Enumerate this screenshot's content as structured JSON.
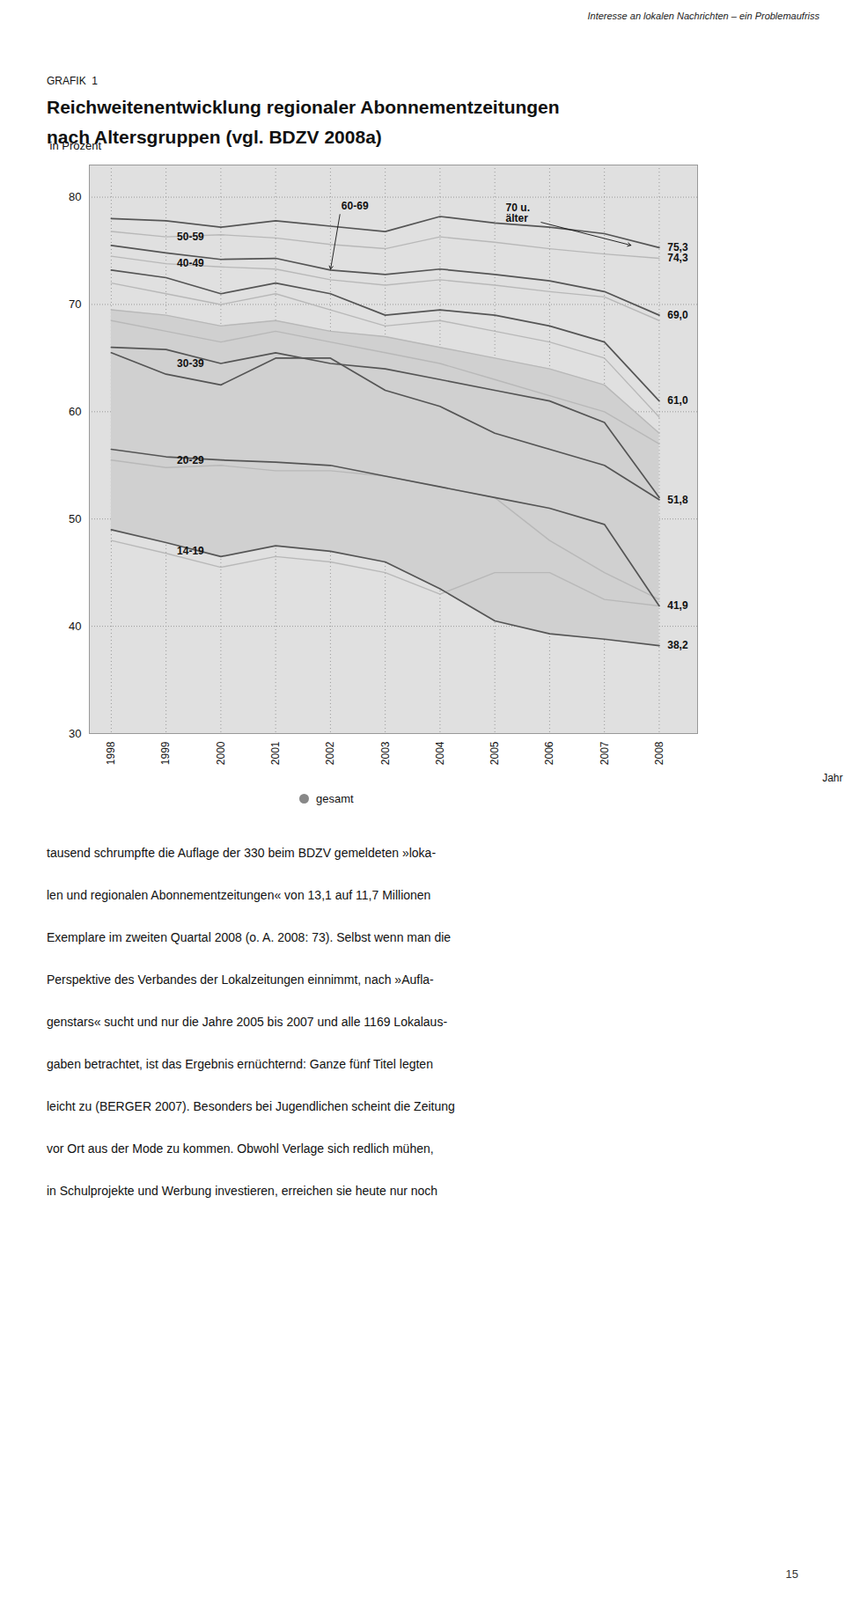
{
  "header_text": "Interesse an lokalen Nachrichten – ein Problemaufriss",
  "figure_label": "GRAFIK  1",
  "body_text": [
    "tausend schrumpfte die Auflage der 330 beim BDZV gemeldeten »loka-",
    "len und regionalen Abonnementzeitungen« von 13,1 auf 11,7 Millionen",
    "Exemplare im zweiten Quartal 2008 (o. A. 2008: 73). Selbst wenn man die",
    "Perspektive des Verbandes der Lokalzeitungen einnimmt, nach »Aufla-",
    "genstars« sucht und nur die Jahre 2005 bis 2007 und alle 1169 Lokalaus-",
    "gaben betrachtet, ist das Ergebnis ernüchternd: Ganze fünf Titel legten",
    "leicht zu (BERGER 2007). Besonders bei Jugendlichen scheint die Zeitung",
    "vor Ort aus der Mode zu kommen. Obwohl Verlage sich redlich mühen,",
    "in Schulprojekte und Werbung investieren, erreichen sie heute nur noch"
  ],
  "page_number": "15",
  "chart_data": {
    "type": "line",
    "title": "Reichweitenentwicklung regionaler Abonnementzeitungen\nnach Altersgruppen (vgl. BDZV 2008a)",
    "xlabel": "Jahr",
    "ylabel": "in Prozent",
    "x": [
      1998,
      1999,
      2000,
      2001,
      2002,
      2003,
      2004,
      2005,
      2006,
      2007,
      2008
    ],
    "xlim": [
      1997.6,
      2008.7
    ],
    "xticks": [
      1998,
      1999,
      2000,
      2001,
      2002,
      2003,
      2004,
      2005,
      2006,
      2007,
      2008
    ],
    "ylim": [
      30,
      83
    ],
    "yticks": [
      30,
      40,
      50,
      60,
      70,
      80
    ],
    "grid": true,
    "background_color": "#e0e0e0",
    "series": [
      {
        "type": "area",
        "color": "#d0d0d0",
        "values": [
          69.5,
          69.0,
          68.0,
          68.5,
          67.5,
          67.0,
          66.0,
          65.0,
          64.0,
          62.5,
          58.0
        ],
        "base": [
          49.0,
          47.8,
          46.5,
          47.5,
          47.0,
          46.0,
          43.5,
          40.5,
          39.3,
          38.8,
          38.2
        ]
      },
      {
        "color": "#555555",
        "values": [
          78.0,
          77.8,
          77.2,
          77.8,
          77.3,
          76.8,
          78.2,
          77.6,
          77.2,
          76.6,
          75.3
        ]
      },
      {
        "color": "#b8b8b8",
        "values": [
          76.8,
          76.3,
          76.5,
          76.2,
          75.6,
          75.2,
          76.3,
          75.8,
          75.2,
          74.7,
          74.3
        ]
      },
      {
        "color": "#555555",
        "values": [
          75.5,
          74.8,
          74.2,
          74.3,
          73.2,
          72.8,
          73.3,
          72.8,
          72.2,
          71.2,
          69.0
        ]
      },
      {
        "color": "#b8b8b8",
        "values": [
          74.5,
          73.8,
          73.5,
          73.3,
          72.3,
          71.8,
          72.3,
          71.8,
          71.2,
          70.7,
          68.5
        ]
      },
      {
        "color": "#555555",
        "values": [
          73.2,
          72.5,
          71.0,
          72.0,
          71.0,
          69.0,
          69.5,
          69.0,
          68.0,
          66.5,
          61.0
        ]
      },
      {
        "color": "#b8b8b8",
        "values": [
          72.0,
          71.0,
          70.0,
          71.0,
          69.5,
          68.0,
          68.5,
          67.5,
          66.5,
          65.0,
          59.5
        ]
      },
      {
        "color": "#555555",
        "values": [
          66.0,
          65.8,
          64.5,
          65.5,
          64.5,
          64.0,
          63.0,
          62.0,
          61.0,
          59.0,
          52.0
        ]
      },
      {
        "color": "#b8b8b8",
        "values": [
          69.5,
          69.0,
          68.0,
          68.5,
          67.5,
          67.0,
          66.0,
          65.0,
          64.0,
          62.5,
          58.0
        ]
      },
      {
        "color": "#555555",
        "values": [
          65.5,
          63.5,
          62.5,
          65.0,
          65.0,
          62.0,
          60.5,
          58.0,
          56.5,
          55.0,
          51.8
        ]
      },
      {
        "color": "#b8b8b8",
        "values": [
          68.5,
          67.5,
          66.5,
          67.5,
          66.5,
          65.5,
          64.5,
          63.0,
          61.5,
          60.0,
          57.0
        ]
      },
      {
        "color": "#555555",
        "values": [
          56.5,
          55.8,
          55.5,
          55.3,
          55.0,
          54.0,
          53.0,
          52.0,
          51.0,
          49.5,
          41.9
        ]
      },
      {
        "color": "#b8b8b8",
        "values": [
          55.5,
          54.8,
          55.0,
          54.5,
          54.5,
          54.0,
          53.0,
          52.0,
          48.0,
          45.0,
          42.5
        ]
      },
      {
        "color": "#555555",
        "values": [
          49.0,
          47.8,
          46.5,
          47.5,
          47.0,
          46.0,
          43.5,
          40.5,
          39.3,
          38.8,
          38.2
        ]
      },
      {
        "color": "#b8b8b8",
        "values": [
          48.0,
          46.8,
          45.5,
          46.5,
          46.0,
          45.0,
          43.0,
          45.0,
          45.0,
          42.5,
          41.9
        ]
      }
    ],
    "annotations": [
      {
        "text": "75,3",
        "x": 2008.15,
        "y": 75.3
      },
      {
        "text": "74,3",
        "x": 2008.15,
        "y": 74.3
      },
      {
        "text": "69,0",
        "x": 2008.15,
        "y": 69.0
      },
      {
        "text": "61,0",
        "x": 2008.15,
        "y": 61.0
      },
      {
        "text": "51,8",
        "x": 2008.15,
        "y": 51.8
      },
      {
        "text": "41,9",
        "x": 2008.15,
        "y": 41.9
      },
      {
        "text": "38,2",
        "x": 2008.15,
        "y": 38.2
      },
      {
        "text": "60-69",
        "x": 2002.2,
        "y": 79.2,
        "arrow_to": [
          2002.0,
          73.2
        ]
      },
      {
        "text": "70 u.\nälter",
        "x": 2005.2,
        "y": 78.5,
        "arrow_to": [
          2007.5,
          75.5
        ]
      },
      {
        "text": "50-59",
        "x": 1999.2,
        "y": 76.3
      },
      {
        "text": "40-49",
        "x": 1999.2,
        "y": 73.8
      },
      {
        "text": "30-39",
        "x": 1999.2,
        "y": 64.5
      },
      {
        "text": "20-29",
        "x": 1999.2,
        "y": 55.5
      },
      {
        "text": "14-19",
        "x": 1999.2,
        "y": 47.0
      }
    ],
    "legend_entries": [
      {
        "label": "gesamt",
        "color": "#888888"
      }
    ]
  }
}
